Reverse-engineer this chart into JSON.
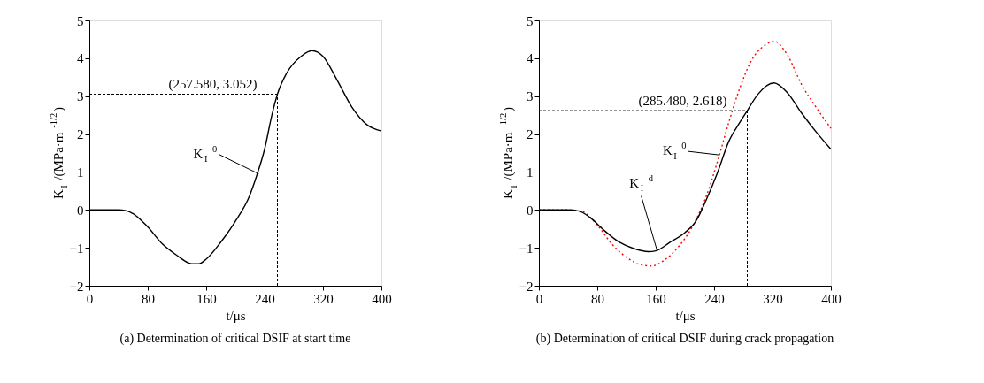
{
  "chart_data": [
    {
      "type": "line",
      "title": "(a) Determination of critical DSIF at start time",
      "xlabel": "t/μs",
      "ylabel": "K$_{I}$/(MPa·m$^{-1/2}$)",
      "series": [
        {
          "color": "#000000",
          "line_style": "solid",
          "x": [
            0,
            40,
            50,
            60,
            80,
            100,
            120,
            140,
            150,
            160,
            180,
            200,
            220,
            230,
            240,
            250,
            257.58,
            270,
            290,
            305,
            320,
            340,
            360,
            380,
            400
          ],
          "values": [
            0,
            0,
            -0.02,
            -0.1,
            -0.45,
            -0.9,
            -1.2,
            -1.42,
            -1.42,
            -1.3,
            -0.85,
            -0.3,
            0.4,
            0.95,
            1.6,
            2.5,
            3.052,
            3.6,
            4.05,
            4.2,
            4.05,
            3.4,
            2.7,
            2.25,
            2.08
          ]
        }
      ],
      "annotations": [
        {
          "text": "(257.580, 3.052)",
          "x": 257.58,
          "y": 3.052
        },
        {
          "text": "K$_{I}$$^{0}$",
          "x": 232,
          "y": 0.95
        }
      ],
      "ref_lines": [
        {
          "axis": "x",
          "value": 257.58,
          "color": "#000000",
          "line_style": "dashed"
        },
        {
          "axis": "y",
          "value": 3.052,
          "color": "#000000",
          "line_style": "dashed"
        }
      ],
      "xlim": [
        0,
        400
      ],
      "xticks": [
        0,
        80,
        160,
        240,
        320,
        400
      ],
      "ylim": [
        -2,
        5
      ],
      "yticks": [
        -2,
        -1,
        0,
        1,
        2,
        3,
        4,
        5
      ],
      "grid": false,
      "marker": "none"
    },
    {
      "type": "line",
      "title": "(b) Determination of critical DSIF during crack propagation",
      "xlabel": "t/μs",
      "ylabel": "K$_{I}$/(MPa·m$^{-1/2}$)",
      "series": [
        {
          "color": "#ff0000",
          "line_style": "dotted",
          "x": [
            0,
            40,
            60,
            80,
            100,
            120,
            140,
            155,
            170,
            190,
            210,
            230,
            245,
            260,
            275,
            290,
            310,
            322,
            340,
            360,
            380,
            400
          ],
          "values": [
            0,
            0,
            -0.05,
            -0.4,
            -0.9,
            -1.25,
            -1.45,
            -1.48,
            -1.35,
            -1.0,
            -0.45,
            0.4,
            1.3,
            2.3,
            3.2,
            3.9,
            4.35,
            4.45,
            4.1,
            3.3,
            2.7,
            2.15
          ]
        },
        {
          "color": "#000000",
          "line_style": "solid",
          "x": [
            0,
            40,
            55,
            70,
            90,
            110,
            130,
            150,
            160,
            180,
            200,
            215,
            230,
            245,
            260,
            275,
            285.48,
            300,
            322,
            340,
            360,
            380,
            400
          ],
          "values": [
            0,
            0,
            -0.03,
            -0.2,
            -0.55,
            -0.85,
            -1.02,
            -1.1,
            -1.08,
            -0.85,
            -0.6,
            -0.3,
            0.3,
            1.0,
            1.8,
            2.3,
            2.618,
            3.05,
            3.35,
            3.1,
            2.55,
            2.05,
            1.6
          ]
        }
      ],
      "annotations": [
        {
          "text": "(285.480, 2.618)",
          "x": 285.48,
          "y": 2.618
        },
        {
          "text": "K$_{I}$$^{0}$",
          "x": 247,
          "y": 1.45
        },
        {
          "text": "K$_{I}$$^{d}$",
          "x": 162,
          "y": -1.08
        }
      ],
      "ref_lines": [
        {
          "axis": "x",
          "value": 285.48,
          "color": "#000000",
          "line_style": "dashed"
        },
        {
          "axis": "y",
          "value": 2.618,
          "color": "#000000",
          "line_style": "dashed"
        }
      ],
      "xlim": [
        0,
        400
      ],
      "xticks": [
        0,
        80,
        160,
        240,
        320,
        400
      ],
      "ylim": [
        -2,
        5
      ],
      "yticks": [
        -2,
        -1,
        0,
        1,
        2,
        3,
        4,
        5
      ],
      "grid": false,
      "marker": "none"
    }
  ]
}
